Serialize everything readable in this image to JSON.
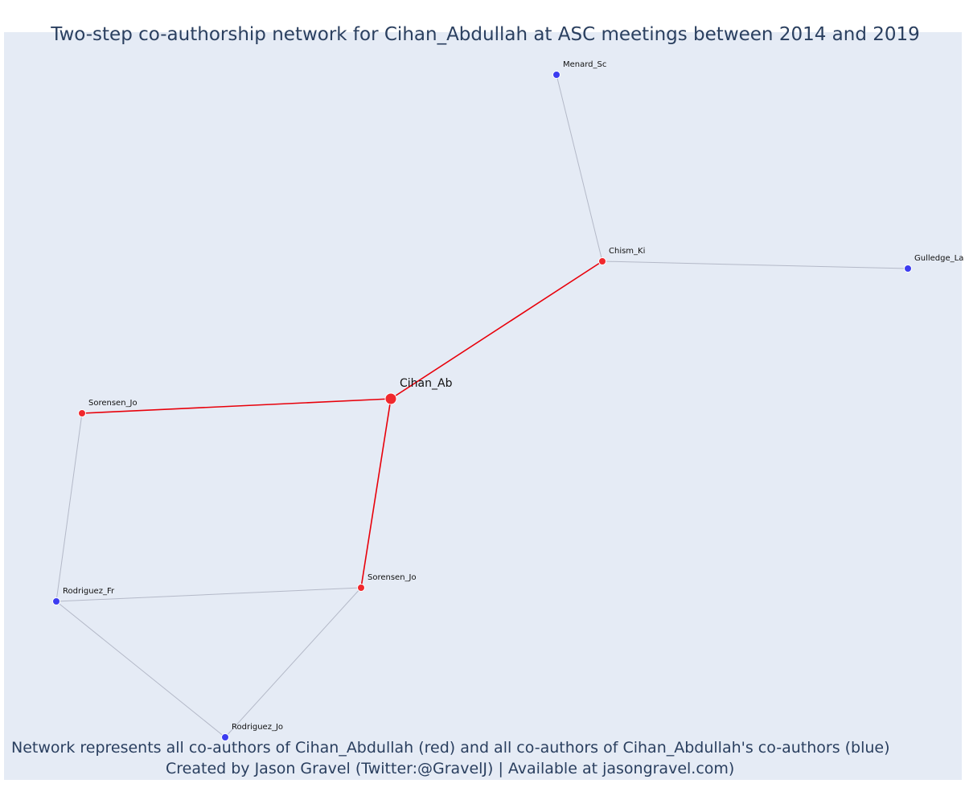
{
  "title": "Two-step co-authorship network for Cihan_Abdullah at ASC meetings between 2014 and 2019",
  "footer": {
    "line1": "Network represents all co-authors of Cihan_Abdullah (red) and all co-authors of Cihan_Abdullah's co-authors (blue)",
    "line2": "Created by Jason Gravel (Twitter:@GravelJ) | Available at jasongravel.com)"
  },
  "colors": {
    "background": "#e5ebf5",
    "ego": "#f0282d",
    "first_step": "#f0282d",
    "second_step": "#3c3cf0",
    "ego_edge": "#e8000a",
    "other_edge": "#b4b9c8",
    "text": "#2a3f5f"
  },
  "network": {
    "nodes": [
      {
        "id": "cihan",
        "label": "Cihan_Ab",
        "group": "ego"
      },
      {
        "id": "chism",
        "label": "Chism_Ki",
        "group": "first_step"
      },
      {
        "id": "sorensen_a",
        "label": "Sorensen_Jo",
        "group": "first_step"
      },
      {
        "id": "sorensen_b",
        "label": "Sorensen_Jo",
        "group": "first_step"
      },
      {
        "id": "menard",
        "label": "Menard_Sc",
        "group": "second_step"
      },
      {
        "id": "gulledge",
        "label": "Gulledge_La",
        "group": "second_step"
      },
      {
        "id": "rodriguez_fr",
        "label": "Rodriguez_Fr",
        "group": "second_step"
      },
      {
        "id": "rodriguez_jo",
        "label": "Rodriguez_Jo",
        "group": "second_step"
      }
    ],
    "edges": [
      {
        "source": "cihan",
        "target": "chism"
      },
      {
        "source": "cihan",
        "target": "sorensen_a"
      },
      {
        "source": "cihan",
        "target": "sorensen_b"
      },
      {
        "source": "chism",
        "target": "menard"
      },
      {
        "source": "chism",
        "target": "gulledge"
      },
      {
        "source": "sorensen_a",
        "target": "rodriguez_fr"
      },
      {
        "source": "sorensen_b",
        "target": "rodriguez_fr"
      },
      {
        "source": "sorensen_b",
        "target": "rodriguez_jo"
      },
      {
        "source": "rodriguez_fr",
        "target": "rodriguez_jo"
      }
    ]
  }
}
